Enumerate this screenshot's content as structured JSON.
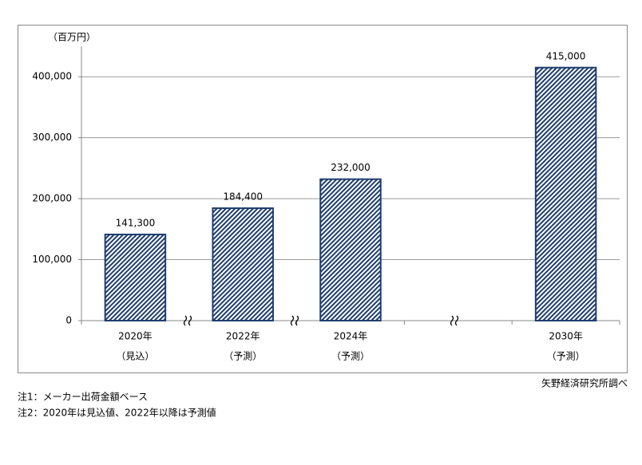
{
  "chart_data": {
    "type": "bar",
    "unit_label": "（百万円）",
    "categories": [
      "2020年",
      "2022年",
      "2024年",
      null,
      "2030年"
    ],
    "category_notes": [
      "（見込）",
      "（予測）",
      "（予測）",
      null,
      "（予測）"
    ],
    "values": [
      141300,
      184400,
      232000,
      null,
      415000
    ],
    "value_labels": [
      "141,300",
      "184,400",
      "232,000",
      null,
      "415,000"
    ],
    "color": "#1f3d6e",
    "ylim": [
      0,
      450000
    ],
    "yticks": [
      0,
      {
        "value": 100000,
        "label": "100,000"
      },
      {
        "value": 200000,
        "label": "200,000"
      },
      {
        "value": 300000,
        "label": "300,000"
      },
      {
        "value": 400000,
        "label": "400,000"
      }
    ],
    "grid": true,
    "source": "矢野経済研究所調べ",
    "notes": [
      "注1：メーカー出荷金額ベース",
      "注2：2020年は見込値、2022年以降は予測値"
    ]
  }
}
